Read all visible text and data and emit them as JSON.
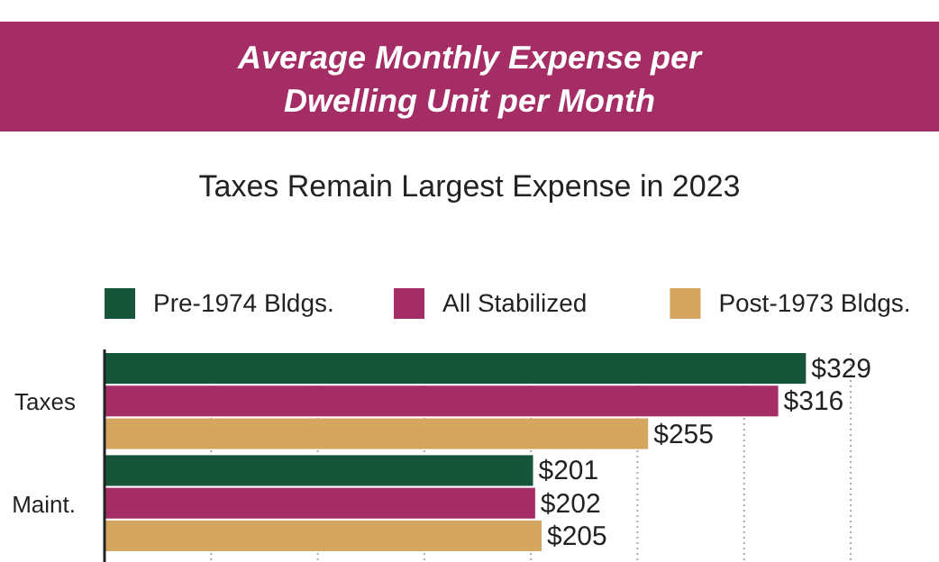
{
  "chart_data": {
    "type": "bar",
    "orientation": "horizontal",
    "title": "Average Monthly Expense per Dwelling Unit per Month",
    "subtitle": "Taxes Remain Largest Expense in 2023",
    "categories": [
      "Taxes",
      "Maint."
    ],
    "series": [
      {
        "name": "Pre-1974 Bldgs.",
        "color": "#17553a",
        "values": [
          329,
          201
        ],
        "value_labels": [
          "$329",
          "$201"
        ]
      },
      {
        "name": "All Stabilized",
        "color": "#a52d65",
        "values": [
          316,
          202
        ],
        "value_labels": [
          "$316",
          "$202"
        ]
      },
      {
        "name": "Post-1973 Bldgs.",
        "color": "#d4a660",
        "values": [
          255,
          205
        ],
        "value_labels": [
          "$255",
          "$205"
        ]
      }
    ],
    "xlim": [
      0,
      350
    ],
    "xticks": [
      {
        "value": 0,
        "label": null
      },
      {
        "value": 50,
        "label": null
      },
      {
        "value": 100,
        "label": null
      },
      {
        "value": 150,
        "label": null
      },
      {
        "value": 200,
        "label": null
      },
      {
        "value": 250,
        "label": null
      },
      {
        "value": 300,
        "label": null
      },
      {
        "value": 350,
        "label": null
      }
    ],
    "grid": "x",
    "legend": "top",
    "tick_labels": "y"
  }
}
